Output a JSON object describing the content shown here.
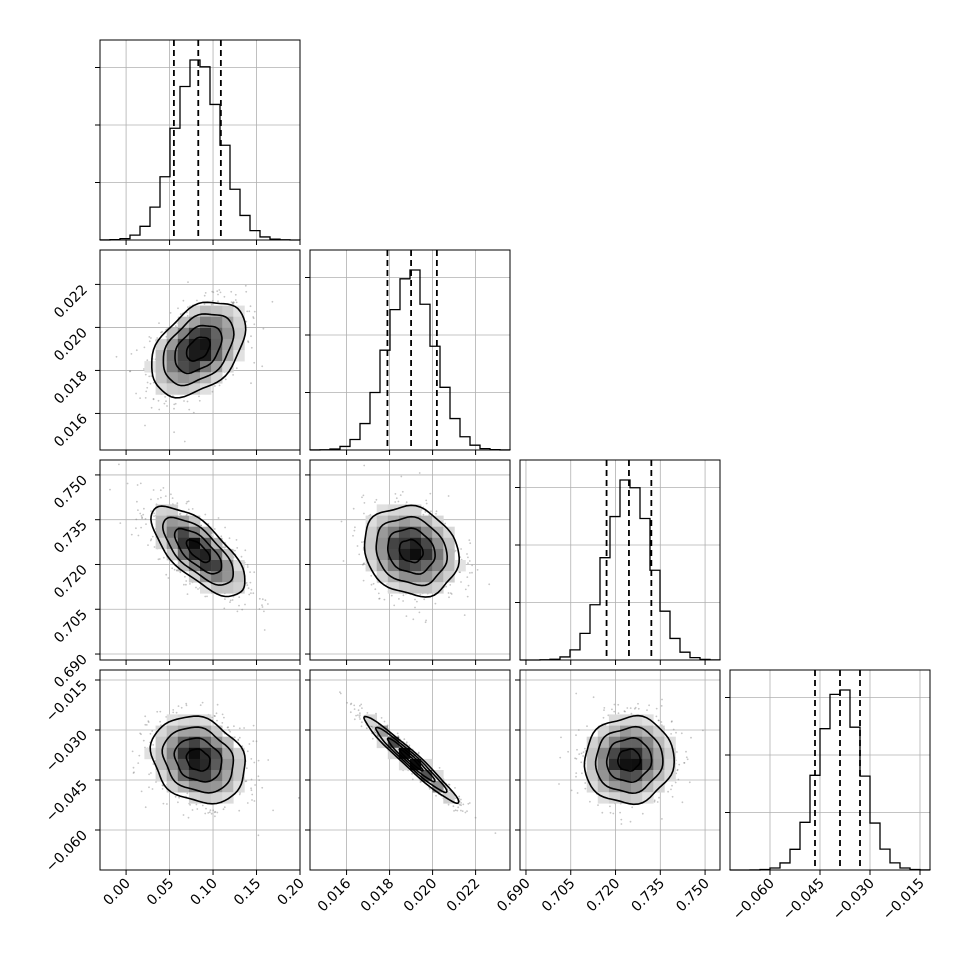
{
  "chart_data": {
    "type": "corner",
    "title": "",
    "grid": true,
    "parameters": [
      {
        "name": "",
        "range": [
          -0.03,
          0.2
        ],
        "ticks": [
          0.0,
          0.05,
          0.1,
          0.15,
          0.2
        ],
        "tick_labels": [
          "0.00",
          "0.05",
          "0.10",
          "0.15",
          "0.20"
        ],
        "quantiles": [
          0.055,
          0.083,
          0.109
        ],
        "median": 0.083,
        "sigma": 0.027
      },
      {
        "name": "",
        "range": [
          0.0143,
          0.0236
        ],
        "ticks": [
          0.016,
          0.018,
          0.02,
          0.022
        ],
        "tick_labels": [
          "0.016",
          "0.018",
          "0.020",
          "0.022"
        ],
        "quantiles": [
          0.0179,
          0.019,
          0.0202
        ],
        "median": 0.019,
        "sigma": 0.0011
      },
      {
        "name": "",
        "range": [
          0.688,
          0.755
        ],
        "ticks": [
          0.69,
          0.705,
          0.72,
          0.735,
          0.75
        ],
        "tick_labels": [
          "0.690",
          "0.705",
          "0.720",
          "0.735",
          "0.750"
        ],
        "quantiles": [
          0.717,
          0.7245,
          0.732
        ],
        "median": 0.7245,
        "sigma": 0.0075
      },
      {
        "name": "",
        "range": [
          -0.072,
          -0.012
        ],
        "ticks": [
          -0.06,
          -0.045,
          -0.03,
          -0.015
        ],
        "tick_labels": [
          "−0.060",
          "−0.045",
          "−0.030",
          "−0.015"
        ],
        "quantiles": [
          -0.0465,
          -0.039,
          -0.033
        ],
        "median": -0.039,
        "sigma": 0.0065
      }
    ],
    "correlations": {
      "1-0": 0.4,
      "2-0": -0.7,
      "2-1": -0.15,
      "3-0": -0.2,
      "3-1": -0.97,
      "3-2": 0.05
    }
  }
}
